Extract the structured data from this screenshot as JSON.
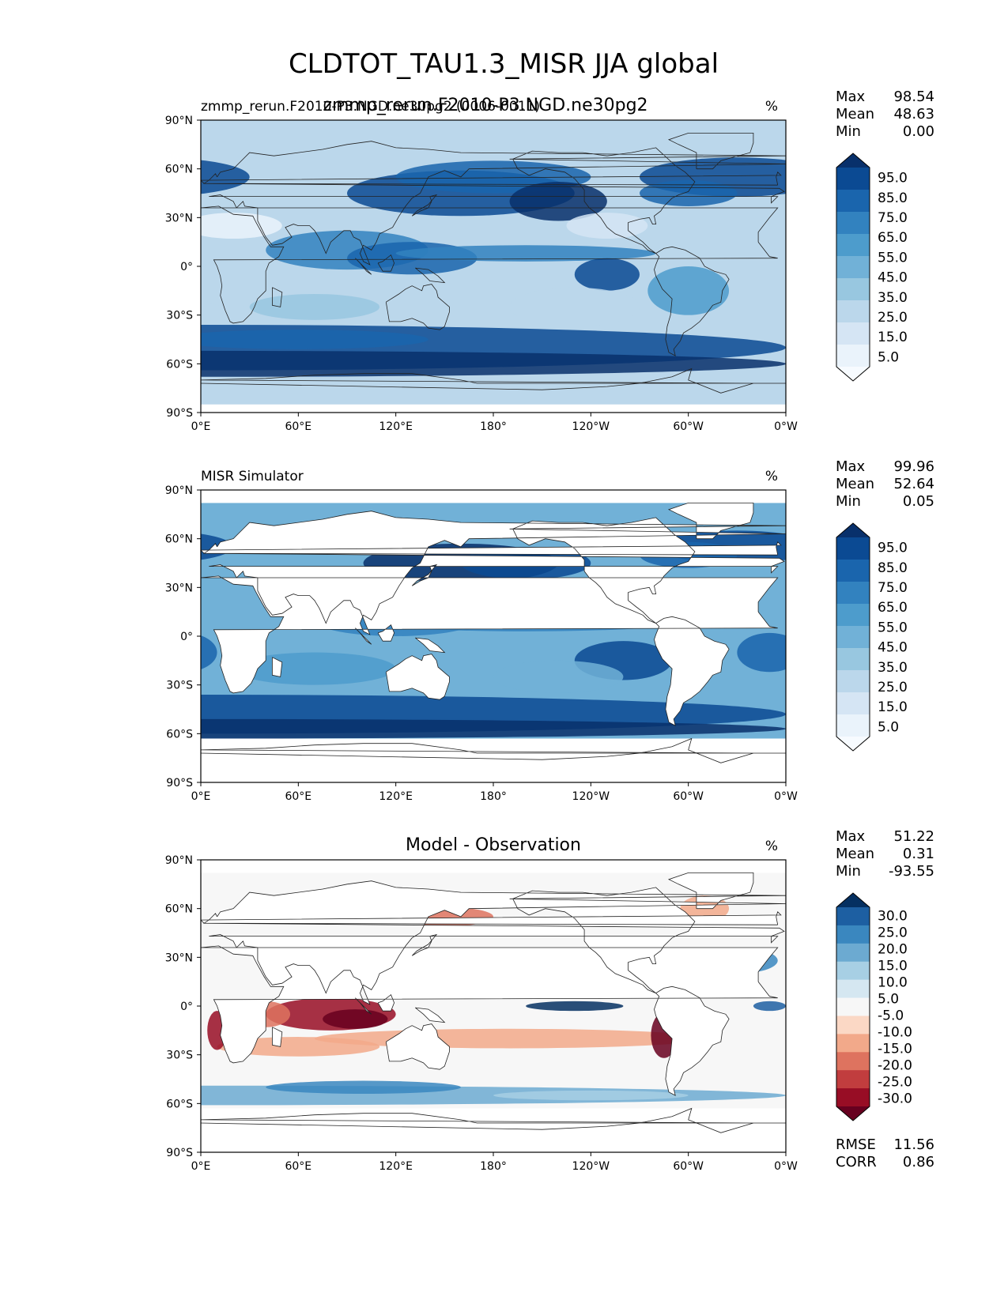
{
  "title": "CLDTOT_TAU1.3_MISR JJA global",
  "lon_ticks": [
    "0°E",
    "60°E",
    "120°E",
    "180°",
    "120°W",
    "60°W",
    "0°W"
  ],
  "lat_ticks": [
    "90°N",
    "60°N",
    "30°N",
    "0°",
    "30°S",
    "60°S",
    "90°S"
  ],
  "stat_labels": {
    "max": "Max",
    "mean": "Mean",
    "min": "Min",
    "rmse": "RMSE",
    "corr": "CORR"
  },
  "panels": [
    {
      "left_title": "zmmp_rerun.F2010-P3.NGD.ne30pg2 (0006-0011)",
      "center_title": "zmmp_rerun.F2010-P3.NGD.ne30pg2",
      "units": "%",
      "stats": {
        "max": "98.54",
        "mean": "48.63",
        "min": "0.00"
      },
      "colorbar": {
        "labels": [
          "95.0",
          "85.0",
          "75.0",
          "65.0",
          "55.0",
          "45.0",
          "35.0",
          "25.0",
          "15.0",
          "5.0"
        ],
        "colors": [
          "#08306b",
          "#0b4a93",
          "#1a65ad",
          "#3282bf",
          "#4d9ccc",
          "#71b1d7",
          "#98c7e0",
          "#bbd7eb",
          "#d5e5f4",
          "#eaf3fb",
          "#f7fbff"
        ]
      }
    },
    {
      "left_title": "MISR Simulator",
      "center_title": "",
      "units": "%",
      "stats": {
        "max": "99.96",
        "mean": "52.64",
        "min": "0.05"
      },
      "colorbar": {
        "labels": [
          "95.0",
          "85.0",
          "75.0",
          "65.0",
          "55.0",
          "45.0",
          "35.0",
          "25.0",
          "15.0",
          "5.0"
        ],
        "colors": [
          "#08306b",
          "#0b4a93",
          "#1a65ad",
          "#3282bf",
          "#4d9ccc",
          "#71b1d7",
          "#98c7e0",
          "#bbd7eb",
          "#d5e5f4",
          "#eaf3fb",
          "#f7fbff"
        ]
      }
    },
    {
      "left_title": "",
      "center_title": "Model - Observation",
      "units": "%",
      "stats": {
        "max": "51.22",
        "mean": "0.31",
        "min": "-93.55"
      },
      "extra_stats": {
        "rmse": "11.56",
        "corr": "0.86"
      },
      "colorbar": {
        "labels": [
          "30.0",
          "25.0",
          "20.0",
          "15.0",
          "10.0",
          "5.0",
          "-5.0",
          "-10.0",
          "-15.0",
          "-20.0",
          "-25.0",
          "-30.0"
        ],
        "colors": [
          "#053061",
          "#1d5fa2",
          "#3a87bf",
          "#6caad1",
          "#a7cfe4",
          "#d5e7f1",
          "#f7f7f7",
          "#fbd8c5",
          "#f2a98a",
          "#de735f",
          "#c13d3e",
          "#980d25",
          "#67001f"
        ]
      }
    }
  ]
}
